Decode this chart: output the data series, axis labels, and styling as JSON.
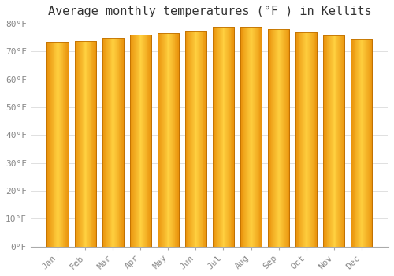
{
  "title": "Average monthly temperatures (°F ) in Kellits",
  "months": [
    "Jan",
    "Feb",
    "Mar",
    "Apr",
    "May",
    "Jun",
    "Jul",
    "Aug",
    "Sep",
    "Oct",
    "Nov",
    "Dec"
  ],
  "values": [
    73.5,
    73.7,
    74.9,
    76.1,
    76.6,
    77.5,
    78.8,
    79.0,
    78.1,
    76.8,
    75.9,
    74.3
  ],
  "bar_color_left": "#E8900A",
  "bar_color_center": "#FFD040",
  "bar_color_right": "#E8900A",
  "bar_edge_color": "#C07000",
  "background_color": "#ffffff",
  "plot_bg_color": "#ffffff",
  "ylim": [
    0,
    80
  ],
  "yticks": [
    0,
    10,
    20,
    30,
    40,
    50,
    60,
    70,
    80
  ],
  "ytick_labels": [
    "0°F",
    "10°F",
    "20°F",
    "30°F",
    "40°F",
    "50°F",
    "60°F",
    "70°F",
    "80°F"
  ],
  "title_fontsize": 11,
  "tick_fontsize": 8,
  "grid_color": "#e0e0e0",
  "font_family": "monospace",
  "bar_width": 0.78
}
